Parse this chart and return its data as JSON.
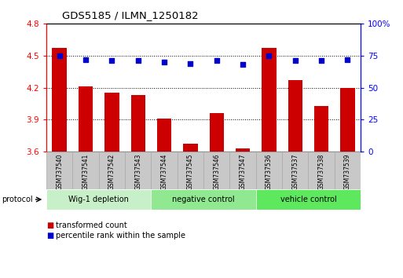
{
  "title": "GDS5185 / ILMN_1250182",
  "samples": [
    "GSM737540",
    "GSM737541",
    "GSM737542",
    "GSM737543",
    "GSM737544",
    "GSM737545",
    "GSM737546",
    "GSM737547",
    "GSM737536",
    "GSM737537",
    "GSM737538",
    "GSM737539"
  ],
  "transformed_count": [
    4.57,
    4.21,
    4.15,
    4.13,
    3.91,
    3.67,
    3.96,
    3.63,
    4.57,
    4.27,
    4.03,
    4.2
  ],
  "percentile_rank": [
    75,
    72,
    71,
    71,
    70,
    69,
    71,
    68,
    75,
    71,
    71,
    72
  ],
  "ylim_left": [
    3.6,
    4.8
  ],
  "ylim_right": [
    0,
    100
  ],
  "yticks_left": [
    3.6,
    3.9,
    4.2,
    4.5,
    4.8
  ],
  "yticks_right": [
    0,
    25,
    50,
    75,
    100
  ],
  "bar_color": "#cc0000",
  "dot_color": "#0000cc",
  "bar_bottom": 3.6,
  "groups": [
    {
      "label": "Wig-1 depletion",
      "start": 0,
      "end": 4
    },
    {
      "label": "negative control",
      "start": 4,
      "end": 8
    },
    {
      "label": "vehicle control",
      "start": 8,
      "end": 12
    }
  ],
  "group_colors": [
    "#c8f0c8",
    "#90e890",
    "#5de85d"
  ],
  "tick_area_color": "#c8c8c8",
  "tick_border_color": "#aaaaaa",
  "protocol_label": "protocol",
  "legend_bar_label": "transformed count",
  "legend_dot_label": "percentile rank within the sample"
}
